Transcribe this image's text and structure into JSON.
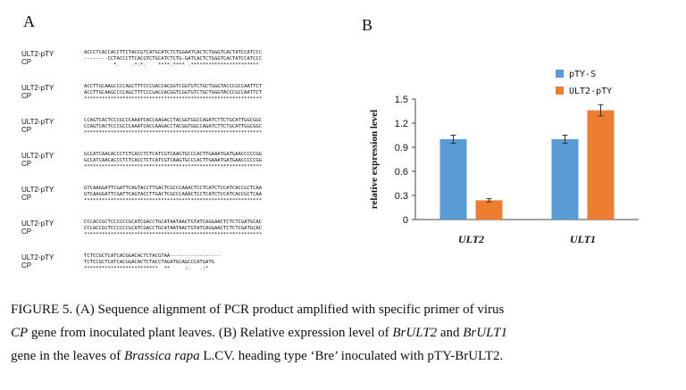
{
  "panel_a": {
    "letter": "A",
    "blocks": [
      {
        "labels": [
          "ULT2-pTY",
          "CP"
        ],
        "lines": [
          "ACCCTCACCACCTTCTACCGTCATGCATCTCTGGAATCACTCTGGGTCACTATCCATCCC",
          "--------CCTACCCTTCACGTCTGCATCTCTG-GATCACTCTGGGTCACTATCCATCCC",
          "          *.    .*:*.    ****.**** .***********************"
        ]
      },
      {
        "labels": [
          "ULT2-pTY",
          "CP"
        ],
        "lines": [
          "ACCTTGCAAGCCCCAGCTTTCCCGACCACGGTCGGTGTCTGCTGGGTACCCGCCAATTCT",
          "ACCTTGCAAGCCCCAGCTTTCCCGACCACGGTCGGTGTCTGCTGGGTACCCGCCAATTCT",
          "************************************************************"
        ]
      },
      {
        "labels": [
          "ULT2-pTY",
          "CP"
        ],
        "lines": [
          "CCAGTCACTCCCGCCCAAATCACCAAGACCTACGGTGGCCAGATCTTCTGCATTGGCGGC",
          "CCAGTCACTCCCGCCCAAATCACCAAGACCTACGGTGGCCAGATCTTCTGCATTGGCGGC",
          "************************************************************"
        ]
      },
      {
        "labels": [
          "ULT2-pTY",
          "CP"
        ],
        "lines": [
          "GCCATCAACACCCTCTCACCTCTCATCGTCAAGTGCCCACTTGAAATGATGAACCCCCGG",
          "GCCATCAACACCCTCTCACCTCTCATCGTCAAGTGCCCACTTGAAATGATGAACCCCCGG",
          "************************************************************"
        ]
      },
      {
        "labels": [
          "ULT2-pTY",
          "CP"
        ],
        "lines": [
          "GTCAAGGATTCGATTCAGTACCTTGACTCGCCCAAACTCCTCATCTCCATCACCGCTCAA",
          "GTCAAGGATTCGATTCAGTACCTTGACTCGCCCAAACTCCTCATCTCCATCACCGCTCAA",
          "************************************************************"
        ]
      },
      {
        "labels": [
          "ULT2-pTY",
          "CP"
        ],
        "lines": [
          "CCCACCGCTCCCCCCGCATCGACCTGCATAATAACTGTATCAGGAACTCTCTCGATGCAC",
          "CCCACCGCTCCCCCCGCATCGACCTGCATAATAACTGTATCAGGAACTCTCTCGATGCAC",
          "************************************************************"
        ]
      },
      {
        "labels": [
          "ULT2-pTY",
          "CP"
        ],
        "lines": [
          "TCTCCGCTCATCACGGACACTCTACGTAA-----------------",
          "TCTCCGCTCATCACGGACACTCTACCTAGATGCAGCCCATGATG",
          "*************************  **     :.   .:*"
        ]
      }
    ]
  },
  "panel_b": {
    "letter": "B"
  },
  "chart_data": {
    "type": "bar",
    "categories": [
      "ULT2",
      "ULT1"
    ],
    "series": [
      {
        "name": "pTY-S",
        "values": [
          1.0,
          1.0
        ],
        "errors": [
          0.05,
          0.05
        ],
        "color": "#5b9bd5"
      },
      {
        "name": "ULT2-pTY",
        "values": [
          0.24,
          1.36
        ],
        "errors": [
          0.02,
          0.07
        ],
        "color": "#ed7d31"
      }
    ],
    "ylabel": "relative expression level",
    "xlabel": "",
    "ylim": [
      0,
      1.5
    ],
    "yticks": [
      "0",
      "0.3",
      "0.6",
      "0.9",
      "1.2",
      "1.5"
    ],
    "grid": false,
    "legend_position": "top-right"
  },
  "caption": {
    "l1": "FIGURE 5. (A) Sequence alignment of PCR product amplified with specific primer of virus",
    "l2_i1": "CP",
    "l2_t1": " gene from inoculated plant leaves. (B) Relative expression level of ",
    "l2_i2": "BrULT2",
    "l2_t2": " and ",
    "l2_i3": "BrULT1",
    "l3_t1": "gene in the leaves of ",
    "l3_i1": "Brassica rapa",
    "l3_t2": " L.CV. heading type ‘Bre’ inoculated with pTY-BrULT2."
  }
}
